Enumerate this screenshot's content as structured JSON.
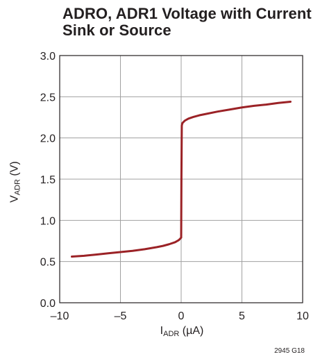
{
  "title": {
    "line1": "ADRO, ADR1 Voltage with Current",
    "line2": "Sink or Source"
  },
  "figure_note": "2945 G18",
  "colors": {
    "curve": "#9b2226",
    "grid": "#a0a0a0",
    "axis": "#231f20"
  },
  "chart_data": {
    "type": "line",
    "title": "ADRO, ADR1 Voltage with Current Sink or Source",
    "xlabel": {
      "main": "I",
      "sub": "ADR",
      "unit": " (µA)"
    },
    "ylabel": {
      "main": "V",
      "sub": "ADR",
      "unit": " (V)"
    },
    "xlim": [
      -10,
      10
    ],
    "ylim": [
      0,
      3.0
    ],
    "xticks": [
      "–10",
      "–5",
      "0",
      "5",
      "10"
    ],
    "xtick_values": [
      -10,
      -5,
      0,
      5,
      10
    ],
    "yticks": [
      "0.0",
      "0.5",
      "1.0",
      "1.5",
      "2.0",
      "2.5",
      "3.0"
    ],
    "ytick_values": [
      0,
      0.5,
      1.0,
      1.5,
      2.0,
      2.5,
      3.0
    ],
    "grid": true,
    "series": [
      {
        "x": [
          -9,
          -8,
          -7,
          -6,
          -5,
          -4,
          -3,
          -2,
          -1.5,
          -1,
          -0.5,
          -0.2,
          0,
          0.02,
          0.05,
          0.1,
          0.3,
          0.6,
          1,
          1.5,
          2,
          3,
          4,
          5,
          6,
          7,
          8,
          9
        ],
        "y": [
          0.56,
          0.57,
          0.585,
          0.6,
          0.615,
          0.63,
          0.65,
          0.675,
          0.69,
          0.71,
          0.735,
          0.76,
          0.79,
          1.5,
          2.15,
          2.18,
          2.21,
          2.235,
          2.255,
          2.275,
          2.29,
          2.32,
          2.345,
          2.37,
          2.39,
          2.405,
          2.425,
          2.44
        ]
      }
    ]
  }
}
